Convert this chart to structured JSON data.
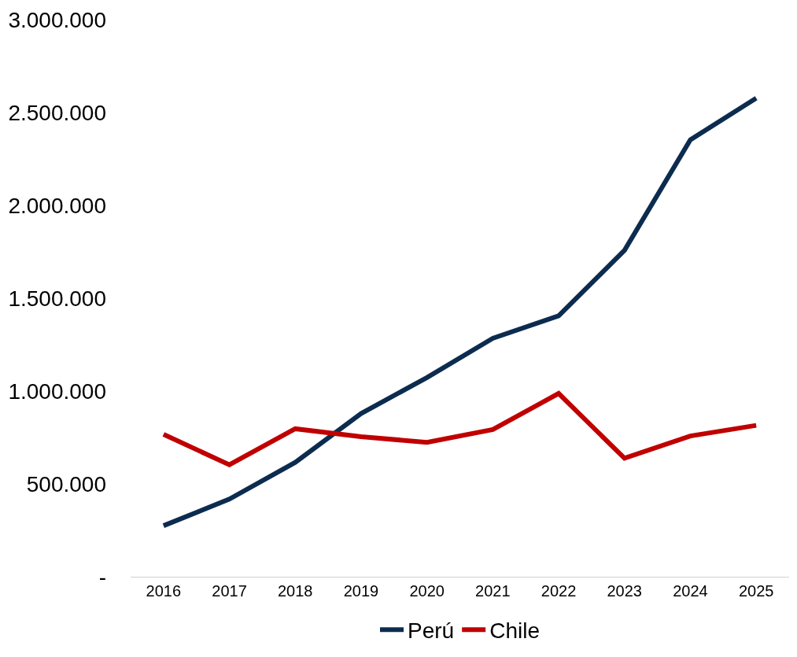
{
  "chart_data": {
    "type": "line",
    "categories": [
      "2016",
      "2017",
      "2018",
      "2019",
      "2020",
      "2021",
      "2022",
      "2023",
      "2024",
      "2025"
    ],
    "series": [
      {
        "name": "Perú",
        "color": "#0c2c4f",
        "values": [
          275000,
          418000,
          616000,
          879000,
          1073000,
          1284000,
          1405000,
          1758000,
          2353000,
          2577000
        ]
      },
      {
        "name": "Chile",
        "color": "#c00000",
        "values": [
          767000,
          603000,
          797000,
          754000,
          724000,
          793000,
          987000,
          638000,
          758000,
          815000
        ]
      }
    ],
    "ylim": [
      0,
      3000000
    ],
    "yticks": [
      {
        "value": 0,
        "label": "-"
      },
      {
        "value": 500000,
        "label": "500.000"
      },
      {
        "value": 1000000,
        "label": "1.000.000"
      },
      {
        "value": 1500000,
        "label": "1.500.000"
      },
      {
        "value": 2000000,
        "label": "2.000.000"
      },
      {
        "value": 2500000,
        "label": "2.500.000"
      },
      {
        "value": 3000000,
        "label": "3.000.000"
      }
    ],
    "legend": "bottom",
    "marker": "none",
    "line_style": "solid"
  }
}
